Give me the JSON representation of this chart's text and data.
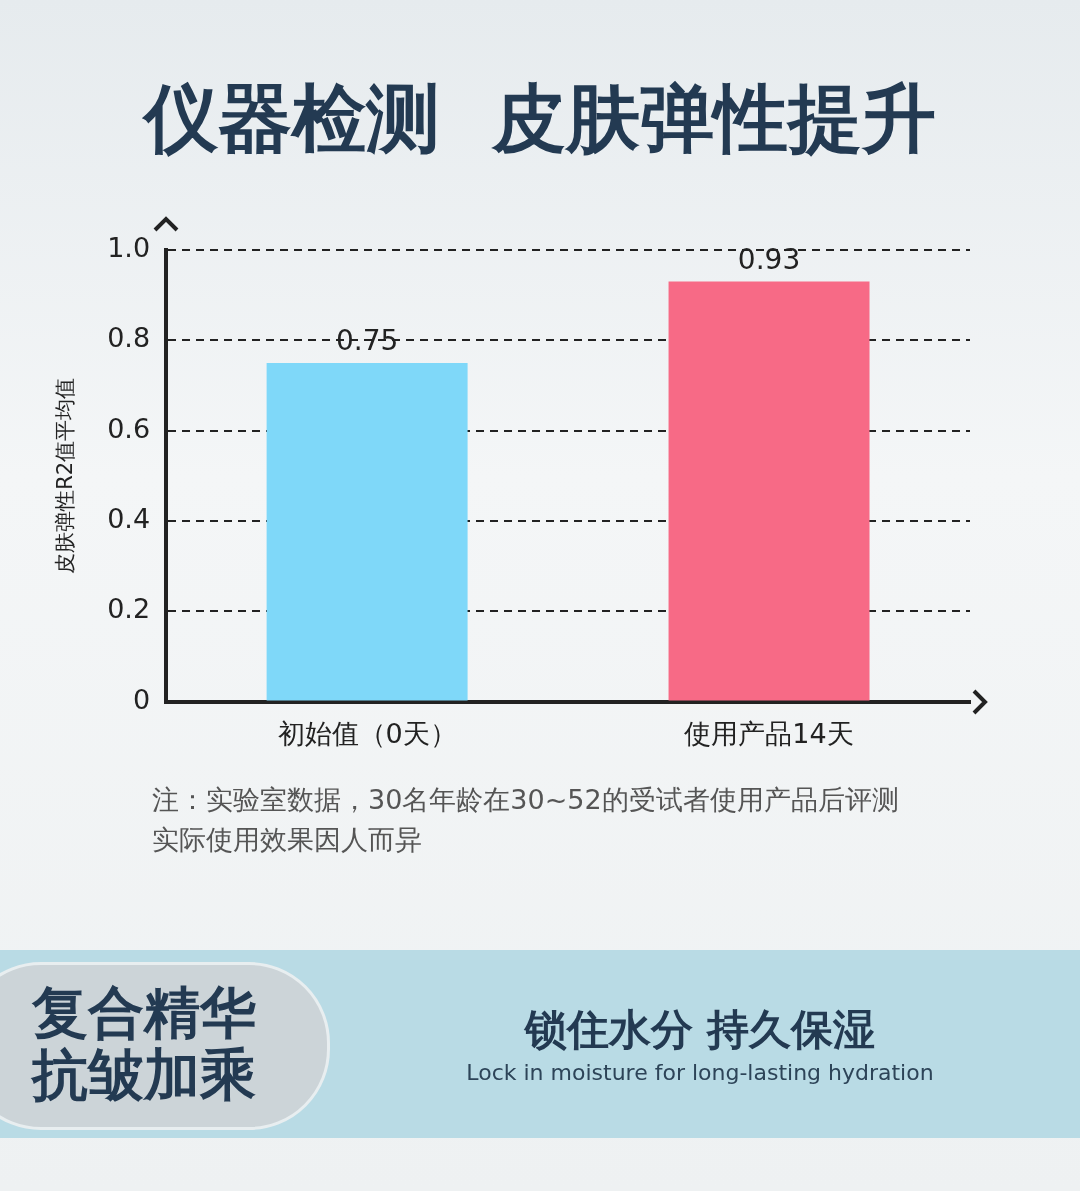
{
  "chart_data": {
    "type": "bar",
    "title": "仪器检测  皮肤弹性提升",
    "ylabel": "皮肤弹性R2值平均值",
    "categories": [
      "初始值（0天）",
      "使用产品14天"
    ],
    "values": [
      0.75,
      0.93
    ],
    "colors": [
      "#7fd8f9",
      "#f76a86"
    ],
    "ylim": [
      0,
      1.0
    ],
    "yticks": [
      0,
      0.2,
      0.4,
      0.6,
      0.8,
      {
        "value": 1,
        "label": "1.0"
      }
    ],
    "grid": "y",
    "line_style": "dashed",
    "data_labels": true,
    "legend": false,
    "annotations": [
      "注：实验室数据，30名年龄在30~52的受试者使用产品后评测",
      "实际使用效果因人而异",
      "复合精华",
      "抗皱加乘",
      "锁住水分 持久保湿",
      "Lock in moisture for long-lasting hydration"
    ]
  }
}
